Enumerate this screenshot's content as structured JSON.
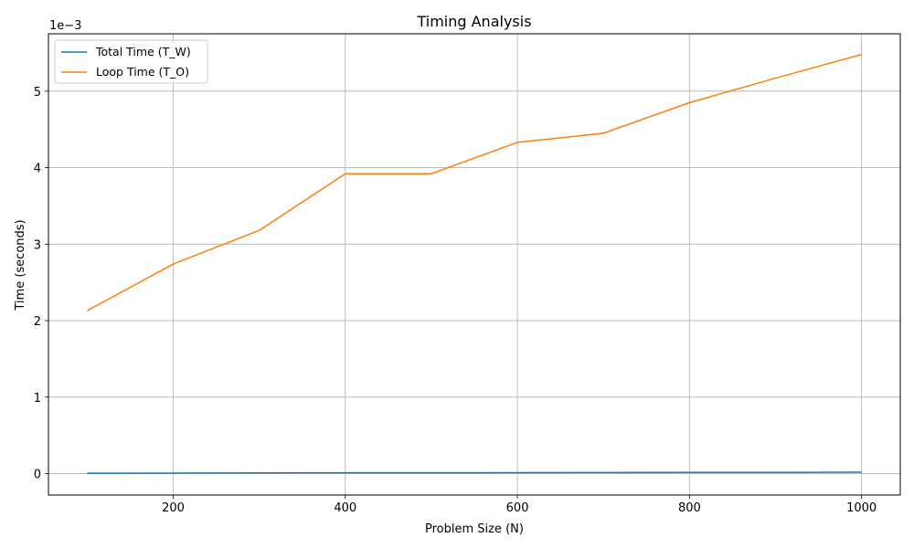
{
  "chart_data": {
    "type": "line",
    "title": "Timing Analysis",
    "xlabel": "Problem Size (N)",
    "ylabel": "Time (seconds)",
    "y_offset_label": "1e−3",
    "x": [
      100,
      200,
      300,
      400,
      500,
      600,
      700,
      800,
      900,
      1000
    ],
    "series": [
      {
        "name": "Total Time (T_W)",
        "color": "#1f77b4",
        "values": [
          5e-06,
          7e-06,
          9e-06,
          1.1e-05,
          1.1e-05,
          1.3e-05,
          1.4e-05,
          1.5e-05,
          1.6e-05,
          1.8e-05
        ]
      },
      {
        "name": "Loop Time (T_O)",
        "color": "#ff7f0e",
        "values": [
          0.00213,
          0.00274,
          0.00318,
          0.00392,
          0.00392,
          0.00433,
          0.00445,
          0.00485,
          0.00517,
          0.00548
        ]
      }
    ],
    "xlim": [
      55,
      1045
    ],
    "ylim": [
      -0.00028,
      0.00575
    ],
    "xticks": [
      200,
      400,
      600,
      800,
      1000
    ],
    "xtick_labels": [
      "200",
      "400",
      "600",
      "800",
      "1000"
    ],
    "yticks": [
      0,
      0.001,
      0.002,
      0.003,
      0.004,
      0.005
    ],
    "ytick_labels": [
      "0",
      "1",
      "2",
      "3",
      "4",
      "5"
    ],
    "grid": true,
    "grid_color": "#b0b0b0",
    "legend_position": "upper-left"
  }
}
